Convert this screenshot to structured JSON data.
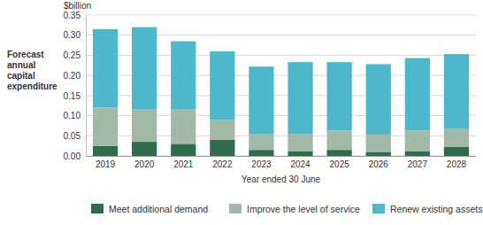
{
  "chart_data": {
    "type": "bar",
    "stacked": true,
    "grid": true,
    "legend": "bottom",
    "y_unit_label": "$billion",
    "y_label": "Forecast annual capital expenditure",
    "x_label": "Year ended 30 June",
    "categories": [
      "2019",
      "2020",
      "2021",
      "2022",
      "2023",
      "2024",
      "2025",
      "2026",
      "2027",
      "2028"
    ],
    "series": [
      {
        "name": "Meet additional demand",
        "color": "#2f6b4f",
        "values": [
          0.025,
          0.035,
          0.03,
          0.04,
          0.015,
          0.012,
          0.015,
          0.01,
          0.012,
          0.022
        ]
      },
      {
        "name": "Improve the level of service",
        "color": "#a2b9a8",
        "values": [
          0.095,
          0.08,
          0.085,
          0.05,
          0.04,
          0.043,
          0.048,
          0.043,
          0.051,
          0.046
        ]
      },
      {
        "name": "Renew existing assets",
        "color": "#4db8c9",
        "values": [
          0.195,
          0.205,
          0.17,
          0.17,
          0.167,
          0.178,
          0.17,
          0.175,
          0.18,
          0.185
        ]
      }
    ],
    "ylim": [
      0,
      0.35
    ],
    "yticks": [
      {
        "value": 0,
        "label": "0.00"
      },
      {
        "value": 0.05,
        "label": "0.05"
      },
      {
        "value": 0.1,
        "label": "0.10"
      },
      {
        "value": 0.15,
        "label": "0.15"
      },
      {
        "value": 0.2,
        "label": "0.20"
      },
      {
        "value": 0.25,
        "label": "0.25"
      },
      {
        "value": 0.3,
        "label": "0.30"
      },
      {
        "value": 0.35,
        "label": "0.35"
      }
    ]
  }
}
